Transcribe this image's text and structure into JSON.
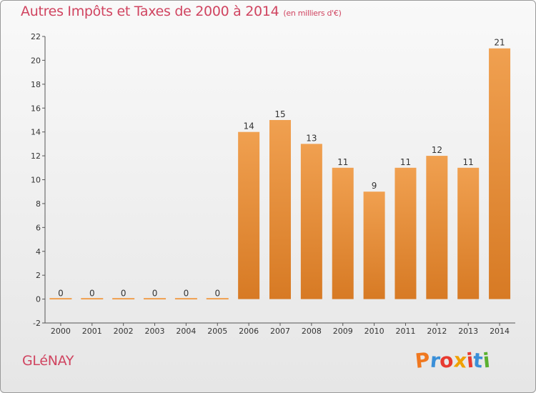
{
  "chart_data": {
    "type": "bar",
    "title": "Autres Impôts et Taxes de 2000 à 2014",
    "subtitle": "(en milliers d'€)",
    "categories": [
      "2000",
      "2001",
      "2002",
      "2003",
      "2004",
      "2005",
      "2006",
      "2007",
      "2008",
      "2009",
      "2010",
      "2011",
      "2012",
      "2013",
      "2014"
    ],
    "values": [
      0,
      0,
      0,
      0,
      0,
      0,
      14,
      15,
      13,
      11,
      9,
      11,
      12,
      11,
      21
    ],
    "ylim": [
      -2,
      22
    ],
    "yticks": [
      -2,
      0,
      2,
      4,
      6,
      8,
      10,
      12,
      14,
      16,
      18,
      20,
      22
    ],
    "grid": false,
    "bar_color": "#f0a050",
    "bar_color_dark": "#d77a24"
  },
  "footer": {
    "commune": "GLéNAY",
    "logo_letters": [
      "P",
      "r",
      "o",
      "x",
      "i",
      "t",
      "i"
    ],
    "logo_colors": [
      "#f07820",
      "#3a8fd8",
      "#e83a30",
      "#f0a000",
      "#e83a30",
      "#3a8fd8",
      "#5ab030"
    ]
  }
}
